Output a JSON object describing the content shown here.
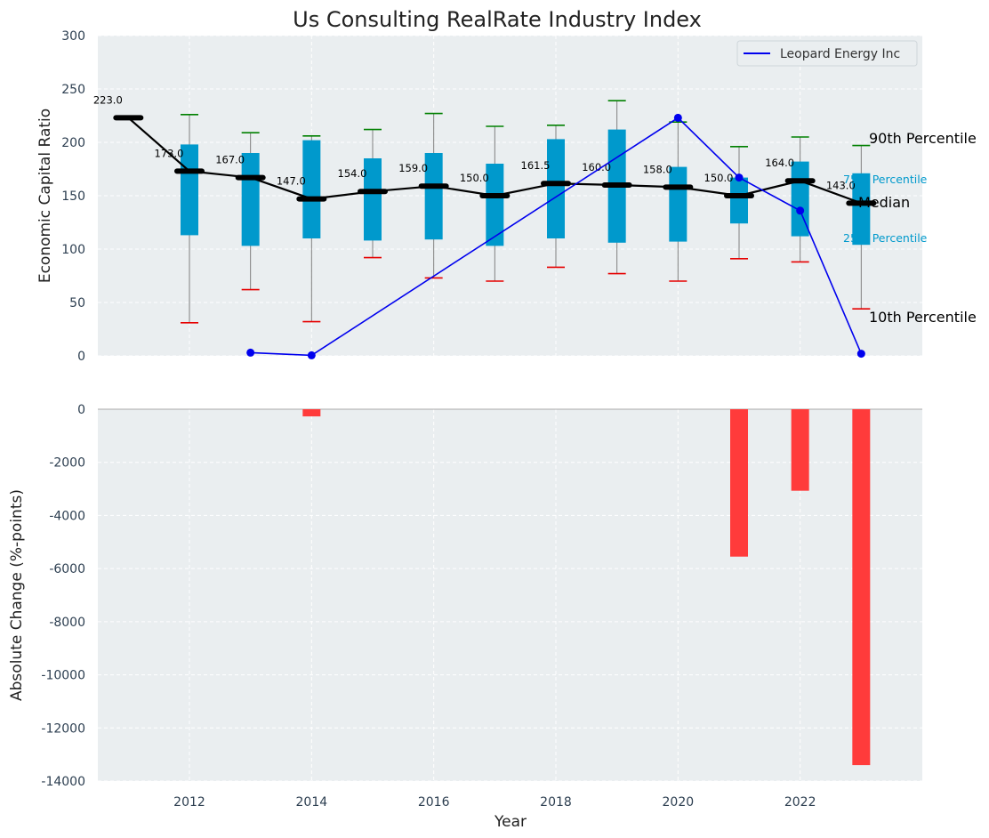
{
  "chart_data": {
    "type": "box-line-bar",
    "title": "Us Consulting RealRate Industry Index",
    "xlabel": "Year",
    "x_ticks": [
      2012,
      2014,
      2016,
      2018,
      2020,
      2022
    ],
    "xlim": [
      2010.5,
      2024.0
    ],
    "top_panel": {
      "ylabel": "Economic Capital Ratio",
      "ylim": [
        0,
        300
      ],
      "y_ticks": [
        0,
        50,
        100,
        150,
        200,
        250,
        300
      ],
      "years": [
        2011,
        2012,
        2013,
        2014,
        2015,
        2016,
        2017,
        2018,
        2019,
        2020,
        2021,
        2022,
        2023
      ],
      "median": [
        223.0,
        173.0,
        167.0,
        147.0,
        154.0,
        159.0,
        150.0,
        161.5,
        160.0,
        158.0,
        150.0,
        164.0,
        143.0
      ],
      "median_labels": [
        "223.0",
        "173.0",
        "167.0",
        "147.0",
        "154.0",
        "159.0",
        "150.0",
        "161.5",
        "160.0",
        "158.0",
        "150.0",
        "164.0",
        "143.0"
      ],
      "p25": [
        null,
        113,
        103,
        110,
        108,
        109,
        103,
        110,
        106,
        107,
        124,
        112,
        104
      ],
      "p75": [
        null,
        198,
        190,
        202,
        185,
        190,
        180,
        203,
        212,
        177,
        167,
        182,
        171
      ],
      "p10": [
        null,
        31,
        62,
        32,
        92,
        73,
        70,
        83,
        77,
        70,
        91,
        88,
        44
      ],
      "p90": [
        null,
        226,
        209,
        206,
        212,
        227,
        215,
        216,
        239,
        219,
        196,
        205,
        197
      ],
      "company": {
        "name": "Leopard Energy Inc",
        "years": [
          2013,
          2014,
          2020,
          2021,
          2022,
          2023
        ],
        "values": [
          3,
          0.5,
          223,
          167,
          136,
          2
        ]
      },
      "side_labels": {
        "p90": "90th Percentile",
        "p75": "75th Percentile",
        "median": "Median",
        "p25": "25th Percentile",
        "p10": "10th Percentile"
      },
      "legend_position": "top-right"
    },
    "bottom_panel": {
      "ylabel": "Absolute Change (%-points)",
      "ylim": [
        -14000,
        0
      ],
      "y_ticks": [
        0,
        -2000,
        -4000,
        -6000,
        -8000,
        -10000,
        -12000,
        -14000
      ],
      "years": [
        2014,
        2021,
        2022,
        2023
      ],
      "values": [
        -270,
        -5550,
        -3070,
        -13400
      ]
    },
    "colors": {
      "box": "#0099cc",
      "median": "#000000",
      "whisker": "#808080",
      "p90_cap": "#008000",
      "p10_cap": "#e60000",
      "company": "#0000ee",
      "bars": "#ff3b3b",
      "plot_bg": "#eaeef0",
      "axis_text": "#2c3e50"
    }
  }
}
